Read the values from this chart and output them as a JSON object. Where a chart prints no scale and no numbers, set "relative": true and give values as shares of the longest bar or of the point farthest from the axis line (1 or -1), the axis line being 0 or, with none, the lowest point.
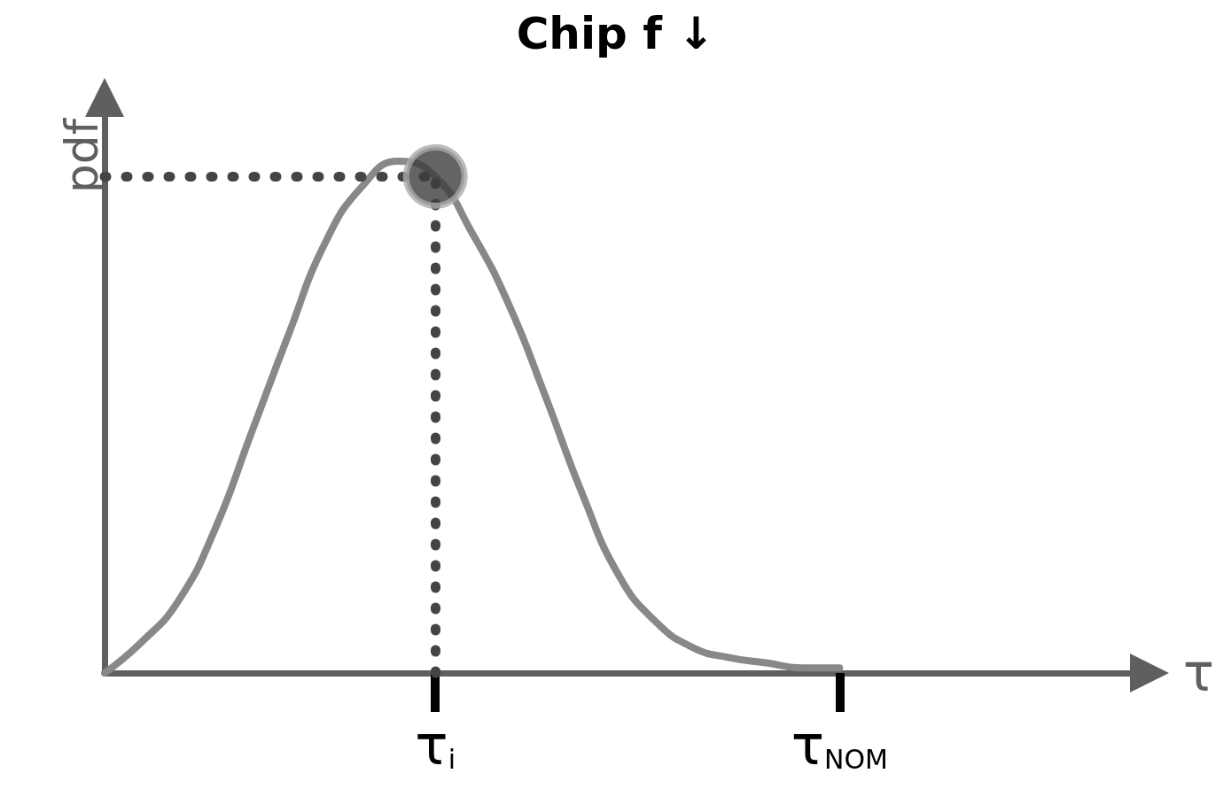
{
  "chart_data": {
    "type": "line",
    "title": "Chip f ↓",
    "xlabel": "τ",
    "ylabel": "pdf",
    "relative": true,
    "grid": false,
    "categories": [
      null,
      null,
      null,
      null,
      null,
      null,
      null,
      null,
      null,
      "τ$_{i}$",
      null,
      null,
      null,
      null,
      null,
      null,
      null,
      null,
      null,
      null,
      "τ$_{NOM}$",
      null,
      null,
      null,
      null,
      null,
      null,
      null,
      null
    ],
    "series": [
      {
        "color": "#888888",
        "values": [
          0,
          0.06,
          0.14,
          0.28,
          0.47,
          0.66,
          0.84,
          0.95,
          1,
          0.97,
          0.86,
          0.72,
          0.54,
          0.35,
          0.19,
          0.1,
          0.05,
          0.03,
          0.02,
          0.01,
          0.01,
          null,
          null,
          null,
          null,
          null,
          null,
          null,
          null
        ]
      },
      {
        "type": "scatter",
        "marker": "circle",
        "color": "#3d3d3d",
        "x": [
          "τ$_{i}$"
        ],
        "values": [
          0.97
        ]
      }
    ],
    "ref_lines": [
      {
        "axis": "x",
        "value": "τ$_{i}$",
        "color": "#444444",
        "line_style": "dotted"
      },
      {
        "axis": "y",
        "value": 0.97,
        "color": "#444444",
        "line_style": "dotted"
      }
    ]
  }
}
